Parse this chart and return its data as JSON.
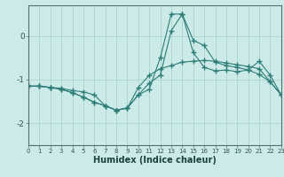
{
  "xlabel": "Humidex (Indice chaleur)",
  "ylabel": "",
  "background_color": "#cceae8",
  "grid_color": "#aad4d0",
  "line_color": "#2d7d78",
  "x_values": [
    0,
    1,
    2,
    3,
    4,
    5,
    6,
    7,
    8,
    9,
    10,
    11,
    12,
    13,
    14,
    15,
    16,
    17,
    18,
    19,
    20,
    21,
    22,
    23
  ],
  "line1_y": [
    -1.15,
    -1.15,
    -1.18,
    -1.2,
    -1.25,
    -1.28,
    -1.35,
    -1.6,
    -1.7,
    -1.65,
    -1.18,
    -0.9,
    -0.75,
    -0.68,
    -0.6,
    -0.58,
    -0.56,
    -0.58,
    -0.62,
    -0.66,
    -0.7,
    -0.75,
    -1.05,
    -1.35
  ],
  "line2_y": [
    -1.15,
    -1.15,
    -1.18,
    -1.22,
    -1.3,
    -1.4,
    -1.52,
    -1.6,
    -1.7,
    -1.65,
    -1.35,
    -1.22,
    -0.5,
    0.5,
    0.5,
    -0.38,
    -0.72,
    -0.8,
    -0.78,
    -0.82,
    -0.78,
    -0.88,
    -1.05,
    -1.35
  ],
  "line3_y": [
    -1.15,
    -1.15,
    -1.18,
    -1.22,
    -1.3,
    -1.4,
    -1.52,
    -1.6,
    -1.7,
    -1.65,
    -1.35,
    -1.08,
    -0.9,
    0.12,
    0.5,
    -0.1,
    -0.22,
    -0.6,
    -0.68,
    -0.72,
    -0.78,
    -0.58,
    -0.9,
    -1.35
  ],
  "ylim": [
    -2.5,
    0.7
  ],
  "xlim": [
    0,
    23
  ],
  "yticks": [
    0,
    -1,
    -2
  ],
  "xticks": [
    0,
    1,
    2,
    3,
    4,
    5,
    6,
    7,
    8,
    9,
    10,
    11,
    12,
    13,
    14,
    15,
    16,
    17,
    18,
    19,
    20,
    21,
    22,
    23
  ]
}
